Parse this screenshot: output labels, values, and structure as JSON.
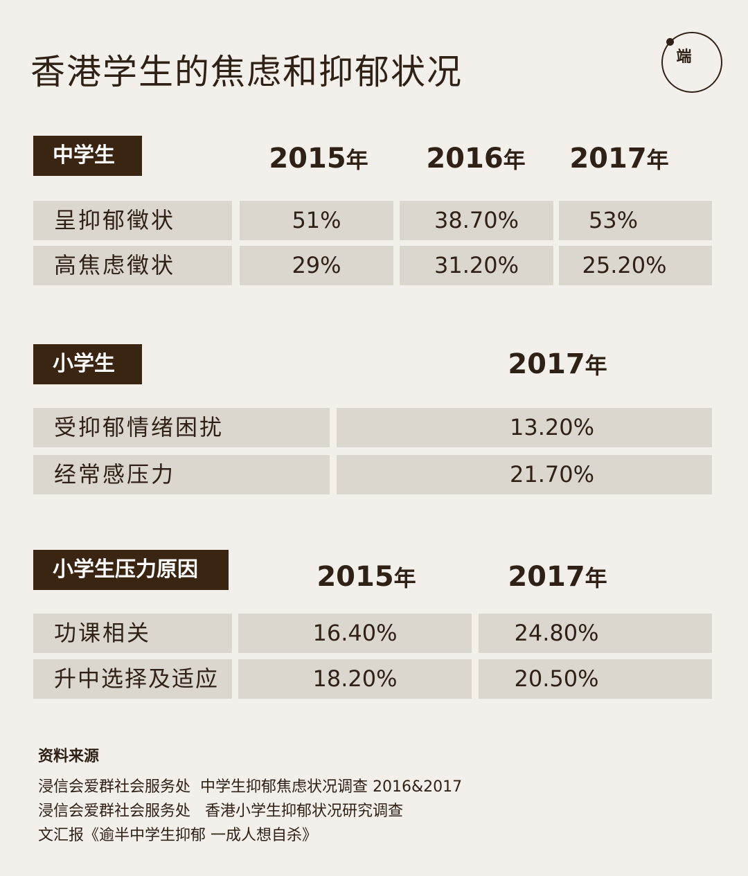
{
  "title": "香港学生的焦虑和抑郁状况",
  "logo": {
    "icon": "initium-logo-icon",
    "text": "端"
  },
  "section1": {
    "tag": "中学生",
    "years": [
      "2015",
      "2016",
      "2017"
    ],
    "year_suffix": "年",
    "rows": [
      {
        "label": "呈抑郁徵状",
        "values": [
          "51%",
          "38.70%",
          "53%"
        ]
      },
      {
        "label": "高焦虑徵状",
        "values": [
          "29%",
          "31.20%",
          "25.20%"
        ]
      }
    ]
  },
  "section2": {
    "tag": "小学生",
    "years": [
      "2017"
    ],
    "year_suffix": "年",
    "rows": [
      {
        "label": "受抑郁情绪困扰",
        "values": [
          "13.20%"
        ]
      },
      {
        "label": "经常感压力",
        "values": [
          "21.70%"
        ]
      }
    ]
  },
  "section3": {
    "tag": "小学生压力原因",
    "years": [
      "2015",
      "2017"
    ],
    "year_suffix": "年",
    "rows": [
      {
        "label": "功课相关",
        "values": [
          "16.40%",
          "24.80%"
        ]
      },
      {
        "label": "升中选择及适应",
        "values": [
          "18.20%",
          "20.50%"
        ]
      }
    ]
  },
  "sources": {
    "heading": "资料来源",
    "lines": [
      "浸信会爱群社会服务处  中学生抑郁焦虑状况调查 2016&2017",
      "浸信会爱群社会服务处   香港小学生抑郁状况研究调查",
      "文汇报《逾半中学生抑郁 一成人想自杀》"
    ]
  },
  "colors": {
    "background": "#f3f0eb",
    "cell": "#dcd7ce",
    "tag": "#3a2412",
    "text": "#2f2116"
  }
}
